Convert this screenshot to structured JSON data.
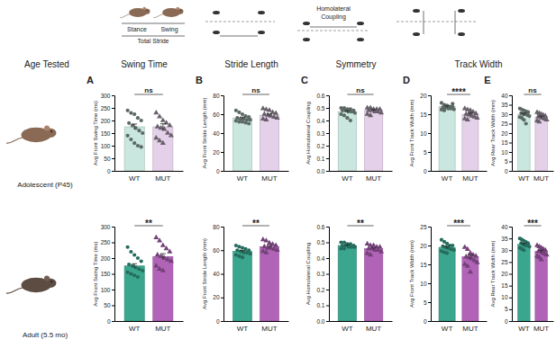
{
  "chart_data": [
    {
      "type": "bar",
      "y_label": "Avg Front Swing Time (ms)",
      "categories": [
        "WT",
        "MUT"
      ],
      "values": [
        175,
        175
      ],
      "errors": [
        11,
        12
      ],
      "points": [
        [
          240,
          230,
          225,
          210,
          200,
          190,
          180,
          170,
          160,
          150,
          140,
          125,
          110,
          100,
          95
        ],
        [
          230,
          215,
          200,
          190,
          180,
          175,
          170,
          165,
          150,
          140,
          130,
          120,
          110
        ]
      ],
      "colors": [
        "#c9e7de",
        "#e4d0e8"
      ],
      "ylim": [
        0,
        300
      ],
      "yticks": [
        0,
        50,
        100,
        150,
        200,
        250,
        300
      ],
      "annotation": "ns"
    },
    {
      "type": "bar",
      "y_label": "Avg Front Stride Length (mm)",
      "categories": [
        "WT",
        "MUT"
      ],
      "values": [
        56,
        59
      ],
      "errors": [
        1,
        1.2
      ],
      "points": [
        [
          64,
          62,
          60,
          58,
          57,
          56,
          55,
          55,
          54,
          54,
          53,
          52,
          52,
          51,
          50
        ],
        [
          66,
          65,
          64,
          62,
          61,
          60,
          59,
          58,
          57,
          56,
          55,
          54
        ]
      ],
      "colors": [
        "#c9e7de",
        "#e4d0e8"
      ],
      "ylim": [
        0,
        80
      ],
      "yticks": [
        0,
        20,
        40,
        60,
        80
      ],
      "annotation": "ns"
    },
    {
      "type": "bar",
      "y_label": "Avg Homolateral Coupling",
      "categories": [
        "WT",
        "MUT"
      ],
      "values": [
        0.47,
        0.48
      ],
      "errors": [
        0.008,
        0.006
      ],
      "points": [
        [
          0.5,
          0.5,
          0.49,
          0.49,
          0.48,
          0.48,
          0.48,
          0.47,
          0.47,
          0.46,
          0.45,
          0.44,
          0.42,
          0.4
        ],
        [
          0.5,
          0.5,
          0.49,
          0.49,
          0.49,
          0.48,
          0.48,
          0.47,
          0.47,
          0.46,
          0.45,
          0.44
        ]
      ],
      "colors": [
        "#c9e7de",
        "#e4d0e8"
      ],
      "ylim": [
        0,
        0.6
      ],
      "yticks": [
        {
          "value": 0,
          "label": "0.0"
        },
        0.1,
        0.2,
        0.3,
        0.4,
        0.5,
        0.6
      ],
      "annotation": "ns"
    },
    {
      "type": "bar",
      "y_label": "Avg Front Track Width (mm)",
      "categories": [
        "WT",
        "MUT"
      ],
      "values": [
        17,
        15
      ],
      "errors": [
        0.2,
        0.3
      ],
      "points": [
        [
          18,
          17.5,
          17.3,
          17,
          17,
          16.8,
          16.7,
          16.5,
          16.5,
          16.3,
          16.2,
          16,
          17.2,
          16.9,
          17.8
        ],
        [
          16.5,
          16.2,
          16,
          15.6,
          15.2,
          15,
          14.8,
          14.5,
          14.3,
          14,
          13.8,
          13.5,
          15.5
        ]
      ],
      "colors": [
        "#c9e7de",
        "#e4d0e8"
      ],
      "ylim": [
        0,
        20
      ],
      "yticks": [
        0,
        5,
        10,
        15,
        20
      ],
      "annotation": "****"
    },
    {
      "type": "bar",
      "y_label": "Avg Rear Track Width (mm)",
      "categories": [
        "WT",
        "MUT"
      ],
      "values": [
        30,
        28.5
      ],
      "errors": [
        0.6,
        0.5
      ],
      "points": [
        [
          33,
          32.5,
          32,
          31.5,
          31,
          30.5,
          30,
          30,
          29.5,
          29,
          28.5,
          28,
          27,
          25,
          31.2
        ],
        [
          31,
          30.5,
          30,
          29.5,
          29,
          28.8,
          28.5,
          28,
          27.5,
          27,
          26.5,
          26
        ]
      ],
      "colors": [
        "#c9e7de",
        "#e4d0e8"
      ],
      "ylim": [
        0,
        40
      ],
      "yticks": [
        0,
        5,
        10,
        15,
        20,
        25,
        30,
        35,
        40
      ],
      "annotation": "ns"
    },
    {
      "type": "bar",
      "y_label": "Avg Front Swing Time (ms)",
      "categories": [
        "WT",
        "MUT"
      ],
      "values": [
        175,
        205
      ],
      "errors": [
        7,
        9
      ],
      "points": [
        [
          235,
          220,
          210,
          200,
          190,
          180,
          175,
          170,
          165,
          160,
          155,
          150,
          145,
          140
        ],
        [
          265,
          255,
          240,
          230,
          220,
          210,
          205,
          200,
          195,
          190,
          175,
          165,
          160
        ]
      ],
      "colors": [
        "#3aa68e",
        "#b163b8"
      ],
      "ylim": [
        0,
        300
      ],
      "yticks": [
        0,
        50,
        100,
        150,
        200,
        250,
        300
      ],
      "annotation": "**"
    },
    {
      "type": "bar",
      "y_label": "Avg Front Stride Length (mm)",
      "categories": [
        "WT",
        "MUT"
      ],
      "values": [
        59,
        63
      ],
      "errors": [
        0.8,
        1
      ],
      "points": [
        [
          64,
          63,
          62,
          61,
          60,
          60,
          59,
          58,
          58,
          57,
          56,
          55,
          54
        ],
        [
          69,
          68,
          66,
          65,
          64,
          63,
          62,
          62,
          61,
          60,
          59,
          58
        ]
      ],
      "colors": [
        "#3aa68e",
        "#b163b8"
      ],
      "ylim": [
        0,
        80
      ],
      "yticks": [
        0,
        20,
        40,
        60,
        80
      ],
      "annotation": "**"
    },
    {
      "type": "bar",
      "y_label": "Avg Homolateral Coupling",
      "categories": [
        "WT",
        "MUT"
      ],
      "values": [
        0.48,
        0.46
      ],
      "errors": [
        0.004,
        0.006
      ],
      "points": [
        [
          0.5,
          0.5,
          0.49,
          0.49,
          0.48,
          0.48,
          0.48,
          0.47,
          0.47,
          0.47,
          0.46,
          0.46
        ],
        [
          0.49,
          0.48,
          0.48,
          0.47,
          0.47,
          0.46,
          0.46,
          0.45,
          0.45,
          0.44,
          0.43,
          0.42
        ]
      ],
      "colors": [
        "#3aa68e",
        "#b163b8"
      ],
      "ylim": [
        0,
        0.6
      ],
      "yticks": [
        {
          "value": 0,
          "label": "0.0"
        },
        0.1,
        0.2,
        0.3,
        0.4,
        0.5,
        0.6
      ],
      "annotation": "**"
    },
    {
      "type": "bar",
      "y_label": "Avg Front Track Width (mm)",
      "categories": [
        "WT",
        "MUT"
      ],
      "values": [
        19.5,
        17
      ],
      "errors": [
        0.3,
        0.5
      ],
      "points": [
        [
          21.5,
          21,
          20.5,
          20,
          20,
          19.8,
          19.5,
          19.3,
          19,
          18.8,
          18.5,
          18.2,
          18
        ],
        [
          19.5,
          19,
          18,
          17.5,
          17.2,
          17,
          16.8,
          16.5,
          16,
          15.5,
          15,
          14.5,
          13
        ]
      ],
      "colors": [
        "#3aa68e",
        "#b163b8"
      ],
      "ylim": [
        0,
        25
      ],
      "yticks": [
        0,
        5,
        10,
        15,
        20,
        25
      ],
      "annotation": "***"
    },
    {
      "type": "bar",
      "y_label": "Avg Rear Track Width (mm)",
      "categories": [
        "WT",
        "MUT"
      ],
      "values": [
        32.5,
        29.5
      ],
      "errors": [
        0.4,
        0.5
      ],
      "points": [
        [
          35,
          34.5,
          34,
          33.5,
          33,
          33,
          32.5,
          32,
          32,
          31.5,
          31,
          30.5,
          30
        ],
        [
          32,
          31.5,
          31,
          30.5,
          30,
          29.5,
          29.5,
          29,
          28.5,
          28,
          27.5,
          27,
          26
        ]
      ],
      "colors": [
        "#3aa68e",
        "#b163b8"
      ],
      "ylim": [
        0,
        40
      ],
      "yticks": [
        0,
        5,
        10,
        15,
        20,
        25,
        30,
        35,
        40
      ],
      "annotation": "***"
    }
  ],
  "figure": {
    "age_label": "Age Tested",
    "column_titles": [
      "Swing Time",
      "Stride Length",
      "Symmetry",
      "Track Width"
    ],
    "panel_letters": [
      "A",
      "B",
      "C",
      "D",
      "E"
    ],
    "row_labels": [
      "Adolescent (P45)",
      "Adult (5.5 mo)"
    ],
    "schematic": {
      "stance": "Stance",
      "swing": "Swing",
      "total_stride": "Total Stride",
      "coupling": [
        "Homolateral",
        "Coupling"
      ]
    }
  }
}
